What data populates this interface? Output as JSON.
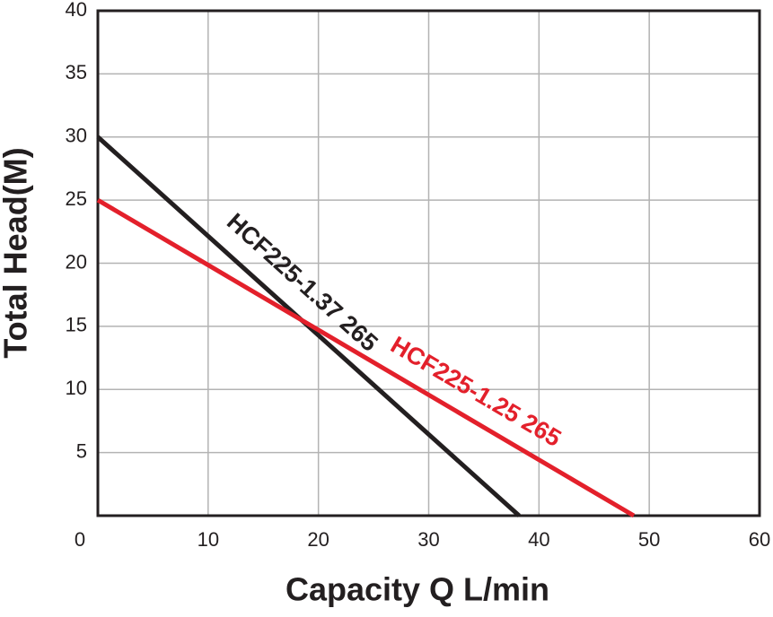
{
  "chart_data": {
    "type": "line",
    "xlabel": "Capacity Q L/min",
    "ylabel": "Total Head(M)",
    "xlim": [
      0,
      60
    ],
    "xticks": [
      0,
      10,
      20,
      30,
      40,
      50,
      60
    ],
    "ylim": [
      0,
      40
    ],
    "yticks": [
      5,
      10,
      15,
      20,
      25,
      30,
      35,
      40
    ],
    "grid": true,
    "series": [
      {
        "name": "HCF225-1.37 265",
        "color": "#231f20",
        "x": [
          0,
          38.2
        ],
        "values": [
          30,
          0
        ]
      },
      {
        "name": "HCF225-1.25 265",
        "color": "#e3202b",
        "x": [
          0,
          48.6
        ],
        "values": [
          25,
          0
        ]
      }
    ]
  }
}
